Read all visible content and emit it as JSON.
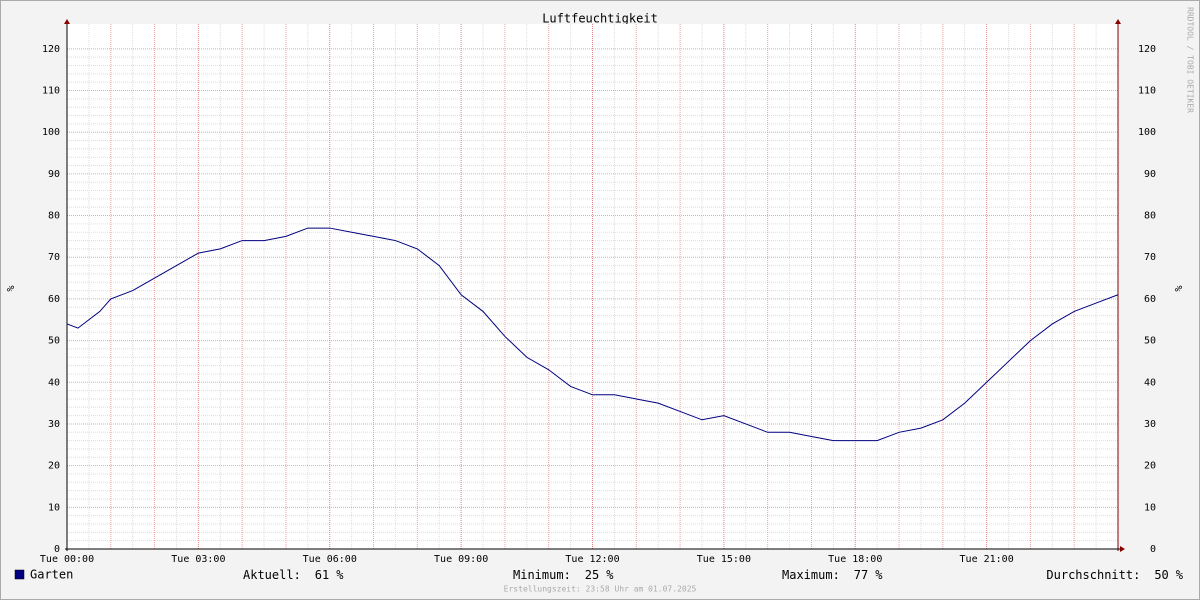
{
  "chart_data": {
    "type": "line",
    "title": "Luftfeuchtigkeit",
    "y_label": "%",
    "watermark": "RRDTOOL / TOBI OETIKER",
    "footer": "Erstellungszeit: 23:58 Uhr am 01.07.2025",
    "x": [
      0,
      0.25,
      0.5,
      0.75,
      1,
      1.5,
      2,
      2.5,
      3,
      3.5,
      4,
      4.5,
      5,
      5.5,
      6,
      6.5,
      7,
      7.5,
      8,
      8.5,
      9,
      9.5,
      10,
      10.5,
      11,
      11.5,
      12,
      12.5,
      13,
      13.5,
      14,
      14.5,
      15,
      15.5,
      16,
      16.5,
      17,
      17.5,
      18,
      18.5,
      19,
      19.5,
      20,
      20.5,
      21,
      21.5,
      22,
      22.5,
      23,
      23.5,
      24
    ],
    "series": [
      {
        "name": "Garten",
        "color": "#000080",
        "values": [
          54,
          53,
          55,
          57,
          60,
          62,
          65,
          68,
          71,
          72,
          74,
          74,
          75,
          77,
          77,
          76,
          75,
          74,
          72,
          68,
          61,
          57,
          51,
          46,
          43,
          39,
          37,
          37,
          36,
          35,
          33,
          31,
          32,
          30,
          28,
          28,
          27,
          26,
          26,
          26,
          28,
          29,
          31,
          35,
          40,
          45,
          50,
          54,
          57,
          59,
          61
        ]
      }
    ],
    "xlim": [
      0,
      24
    ],
    "xticks": [
      {
        "value": 0,
        "label": "Tue 00:00"
      },
      {
        "value": 3,
        "label": "Tue 03:00"
      },
      {
        "value": 6,
        "label": "Tue 06:00"
      },
      {
        "value": 9,
        "label": "Tue 09:00"
      },
      {
        "value": 12,
        "label": "Tue 12:00"
      },
      {
        "value": 15,
        "label": "Tue 15:00"
      },
      {
        "value": 18,
        "label": "Tue 18:00"
      },
      {
        "value": 21,
        "label": "Tue 21:00"
      }
    ],
    "ylim": [
      0,
      125
    ],
    "yticks": [
      0,
      10,
      20,
      30,
      40,
      50,
      60,
      70,
      80,
      90,
      100,
      110,
      120
    ],
    "grid": true,
    "stats": [
      {
        "label": "Aktuell:",
        "value": 61,
        "unit": "%"
      },
      {
        "label": "Minimum:",
        "value": 25,
        "unit": "%"
      },
      {
        "label": "Maximum:",
        "value": 77,
        "unit": "%"
      },
      {
        "label": "Durchschnitt:",
        "value": 50,
        "unit": "%"
      }
    ]
  }
}
